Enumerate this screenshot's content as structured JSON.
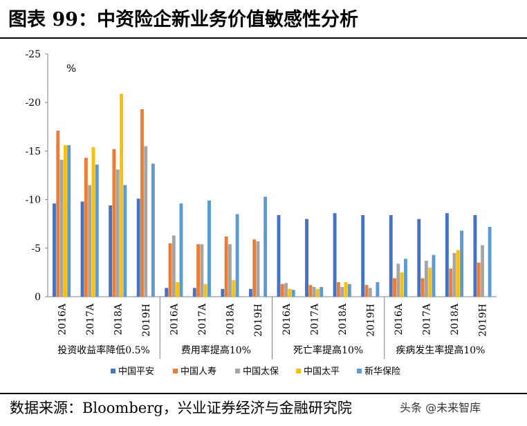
{
  "title": "图表 99：中资险企新业务价值敏感性分析",
  "source": "数据来源：Bloomberg，兴业证券经济与金融研究院",
  "watermark": "头条 @未来智库",
  "colors": {
    "中国平安": "#4472C4",
    "中国人寿": "#ED7D31",
    "中国太保": "#A5A5A5",
    "中国太平": "#FFC000",
    "新华保险": "#5B9BD5"
  },
  "chart_data": {
    "type": "bar",
    "unit_label": "%",
    "ylim": [
      0,
      -25
    ],
    "yticks": [
      -25,
      -20,
      -15,
      -10,
      -5,
      0
    ],
    "groups": [
      {
        "label": "投资收益率降低0.5%",
        "categories": [
          "2016A",
          "2017A",
          "2018A",
          "2019H"
        ]
      },
      {
        "label": "费用率提高10%",
        "categories": [
          "2016A",
          "2017A",
          "2018A",
          "2019H"
        ]
      },
      {
        "label": "死亡率提高10%",
        "categories": [
          "2016A",
          "2017A",
          "2018A",
          "2019H"
        ]
      },
      {
        "label": "疾病发生率提高10%",
        "categories": [
          "2016A",
          "2017A",
          "2018A",
          "2019H"
        ]
      }
    ],
    "series": [
      {
        "name": "中国平安",
        "values": [
          -9.6,
          -9.8,
          -9.4,
          -10.1,
          -0.9,
          -0.9,
          -0.8,
          -0.8,
          -8.4,
          -8.0,
          -8.6,
          -8.4,
          -8.4,
          -8.0,
          -8.6,
          -8.4
        ]
      },
      {
        "name": "中国人寿",
        "values": [
          -17.1,
          -14.3,
          -15.2,
          -19.3,
          -5.5,
          -5.4,
          -6.2,
          -5.9,
          -1.3,
          -1.2,
          -1.5,
          -1.2,
          -1.9,
          -1.9,
          -2.9,
          -3.5
        ]
      },
      {
        "name": "中国太保",
        "values": [
          -14.1,
          -11.5,
          -13.1,
          -15.5,
          -6.3,
          -5.4,
          -5.4,
          -5.7,
          -1.4,
          -1.0,
          -1.0,
          -0.9,
          -3.4,
          -3.7,
          -4.5,
          -5.3
        ]
      },
      {
        "name": "中国太平",
        "values": [
          -15.6,
          -15.4,
          -20.9,
          null,
          -1.5,
          -1.3,
          -1.7,
          null,
          -0.8,
          -0.8,
          -1.5,
          null,
          -2.5,
          -3.0,
          -4.8,
          null
        ]
      },
      {
        "name": "新华保险",
        "values": [
          -15.6,
          -13.6,
          -11.5,
          -13.7,
          -9.6,
          -9.9,
          -8.5,
          -10.3,
          -0.7,
          -1.0,
          -1.3,
          -1.5,
          -3.9,
          -4.3,
          -6.8,
          -7.2
        ]
      }
    ]
  }
}
